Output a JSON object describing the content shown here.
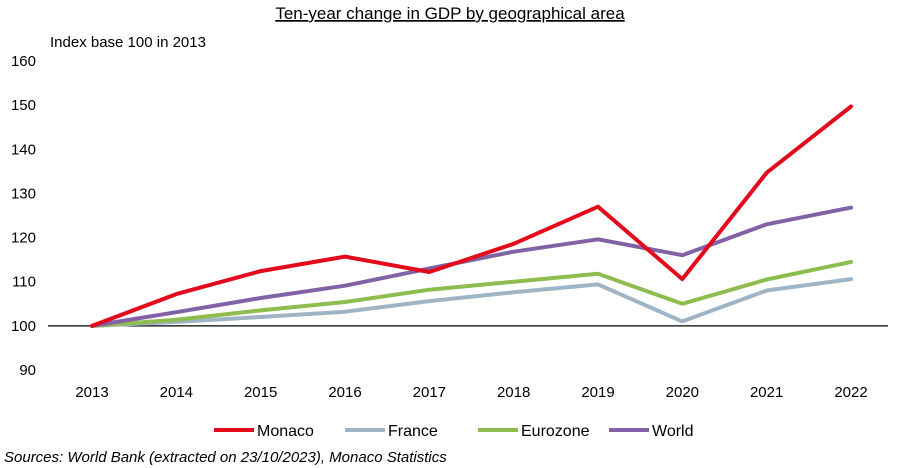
{
  "chart_data": {
    "type": "line",
    "title": "Ten-year change in GDP by geographical area",
    "unit_label": "Index base 100 in 2013",
    "x": [
      "2013",
      "2014",
      "2015",
      "2016",
      "2017",
      "2018",
      "2019",
      "2020",
      "2021",
      "2022"
    ],
    "ylim": [
      90,
      160
    ],
    "yticks": [
      "90",
      "100",
      "110",
      "120",
      "130",
      "140",
      "150",
      "160"
    ],
    "baseline": 100,
    "grid": false,
    "legend_position": "bottom",
    "series": [
      {
        "name": "Monaco",
        "color": "#e30a1c",
        "values": [
          100,
          107.2,
          112.4,
          115.7,
          112.2,
          118.6,
          127.0,
          110.6,
          134.7,
          149.7
        ]
      },
      {
        "name": "France",
        "color": "#9fb5c6",
        "values": [
          100,
          100.9,
          102.0,
          103.2,
          105.6,
          107.6,
          109.4,
          101.0,
          108.0,
          110.6
        ]
      },
      {
        "name": "Eurozone",
        "color": "#8fbc4f",
        "values": [
          100,
          101.4,
          103.5,
          105.4,
          108.2,
          110.0,
          111.8,
          105.0,
          110.5,
          114.5
        ]
      },
      {
        "name": "World",
        "color": "#8262a6",
        "values": [
          100,
          103.1,
          106.3,
          109.1,
          113.0,
          116.8,
          119.6,
          116.0,
          123.0,
          126.8
        ]
      }
    ],
    "source": "Sources: World Bank (extracted on 23/10/2023), Monaco Statistics"
  }
}
